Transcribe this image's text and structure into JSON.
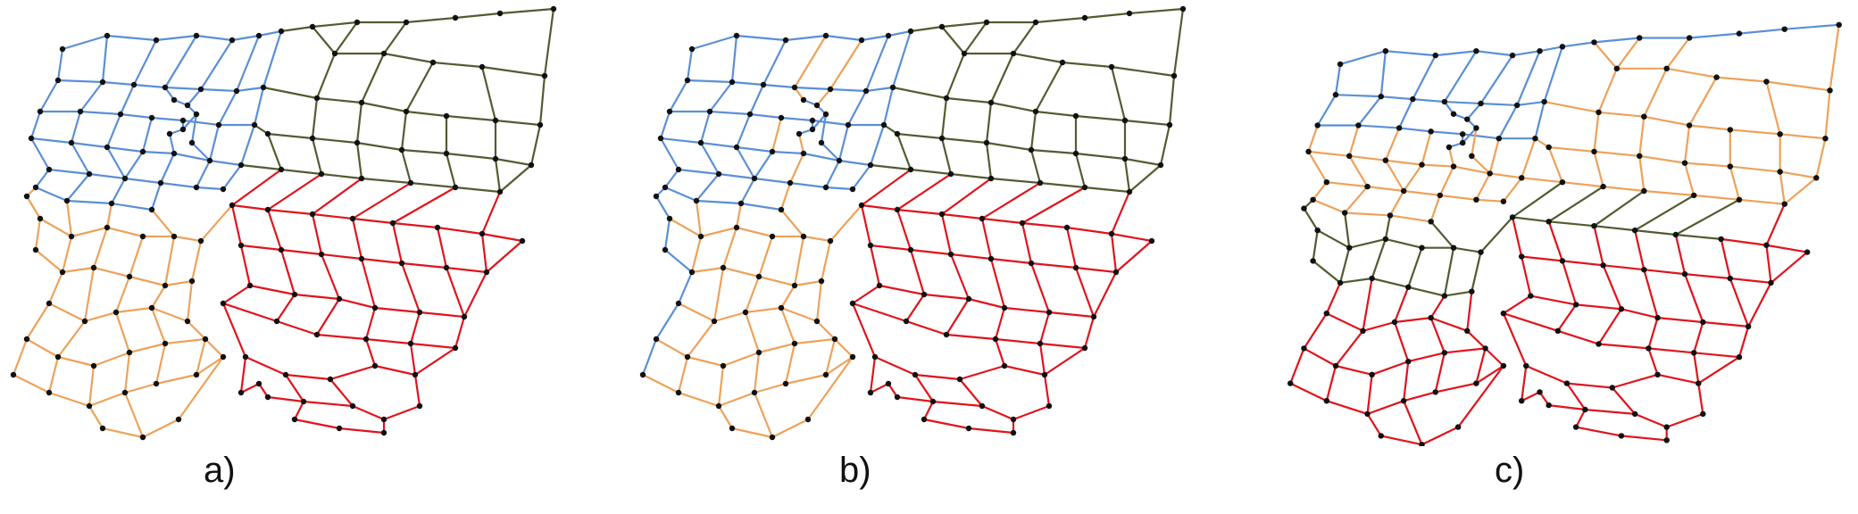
{
  "figure": {
    "captions": [
      "a)",
      "b)",
      "c)"
    ],
    "colors": {
      "zone_blue": "#5b8fd6",
      "zone_orange": "#eda25b",
      "zone_olive": "#525c30",
      "zone_red": "#e0141c",
      "node": "#111111"
    }
  }
}
